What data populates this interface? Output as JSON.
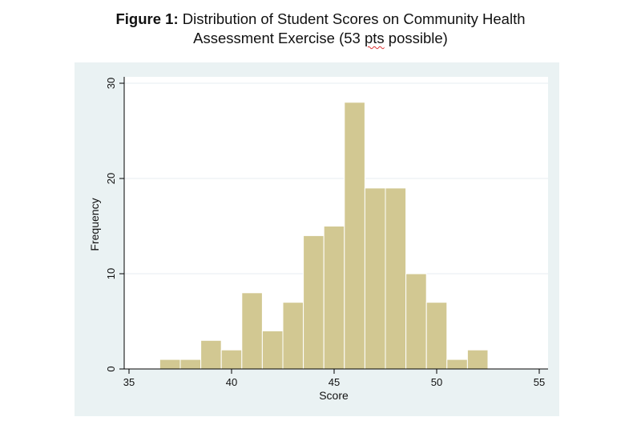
{
  "title": {
    "bold_prefix": "Figure 1:",
    "line1_rest": " Distribution of Student Scores on Community Health",
    "line2_before": "Assessment Exercise (53 ",
    "line2_flagged": "pts",
    "line2_after": " possible)"
  },
  "colors": {
    "outer_background": "#eaf2f3",
    "plot_background": "#ffffff",
    "bar_fill": "#d2c892",
    "bar_stroke": "#ffffff",
    "grid": "#e7eef0",
    "axis": "#000000"
  },
  "chart_data": {
    "type": "bar",
    "xlabel": "Score",
    "ylabel": "Frequency",
    "xlim": [
      35,
      55
    ],
    "ylim": [
      0,
      30
    ],
    "xticks": [
      35,
      40,
      45,
      50,
      55
    ],
    "yticks": [
      0,
      10,
      20,
      30
    ],
    "grid": true,
    "bin_width": 1,
    "bins": [
      {
        "start": 36.5,
        "value": 1
      },
      {
        "start": 37.5,
        "value": 1
      },
      {
        "start": 38.5,
        "value": 3
      },
      {
        "start": 39.5,
        "value": 2
      },
      {
        "start": 40.5,
        "value": 8
      },
      {
        "start": 41.5,
        "value": 4
      },
      {
        "start": 42.5,
        "value": 7
      },
      {
        "start": 43.5,
        "value": 14
      },
      {
        "start": 44.5,
        "value": 15
      },
      {
        "start": 45.5,
        "value": 28
      },
      {
        "start": 46.5,
        "value": 19
      },
      {
        "start": 47.5,
        "value": 19
      },
      {
        "start": 48.5,
        "value": 10
      },
      {
        "start": 49.5,
        "value": 7
      },
      {
        "start": 50.5,
        "value": 1
      },
      {
        "start": 51.5,
        "value": 2
      }
    ]
  }
}
